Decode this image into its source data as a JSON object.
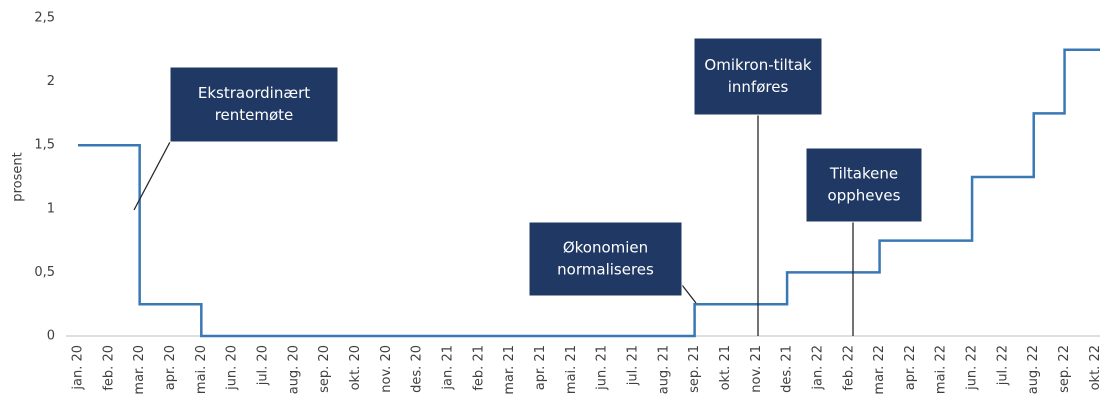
{
  "chart_data": {
    "type": "step",
    "y_label": "prosent",
    "categories": [
      "jan. 20",
      "feb. 20",
      "mar. 20",
      "apr. 20",
      "mai. 20",
      "jun. 20",
      "jul. 20",
      "aug. 20",
      "sep. 20",
      "okt. 20",
      "nov. 20",
      "des. 20",
      "jan. 21",
      "feb. 21",
      "mar. 21",
      "apr. 21",
      "mai. 21",
      "jun. 21",
      "jul. 21",
      "aug. 21",
      "sep. 21",
      "okt. 21",
      "nov. 21",
      "des. 21",
      "jan. 22",
      "feb. 22",
      "mar. 22",
      "apr. 22",
      "mai. 22",
      "jun. 22",
      "jul. 22",
      "aug. 22",
      "sep. 22",
      "okt. 22"
    ],
    "values": [
      1.5,
      1.5,
      0.25,
      0.25,
      0,
      0,
      0,
      0,
      0,
      0,
      0,
      0,
      0,
      0,
      0,
      0,
      0,
      0,
      0,
      0,
      0.25,
      0.25,
      0.25,
      0.5,
      0.5,
      0.5,
      0.75,
      0.75,
      0.75,
      1.25,
      1.25,
      1.75,
      2.25,
      2.25
    ],
    "color": "#3a78b5",
    "ylim": [
      0,
      2.5
    ],
    "yticks": [
      0,
      {
        "value": 0.5,
        "label": "0,5"
      },
      1,
      {
        "value": 1.5,
        "label": "1,5"
      },
      2,
      {
        "value": 2.5,
        "label": "2,5"
      }
    ],
    "annotations": [
      {
        "lines": [
          "Ekstraordinært",
          "rentemøte"
        ]
      },
      {
        "lines": [
          "Omikron-tiltak",
          "innføres"
        ]
      },
      {
        "lines": [
          "Tiltakene",
          "oppheves"
        ]
      },
      {
        "lines": [
          "Økonomien",
          "normaliseres"
        ]
      }
    ]
  }
}
